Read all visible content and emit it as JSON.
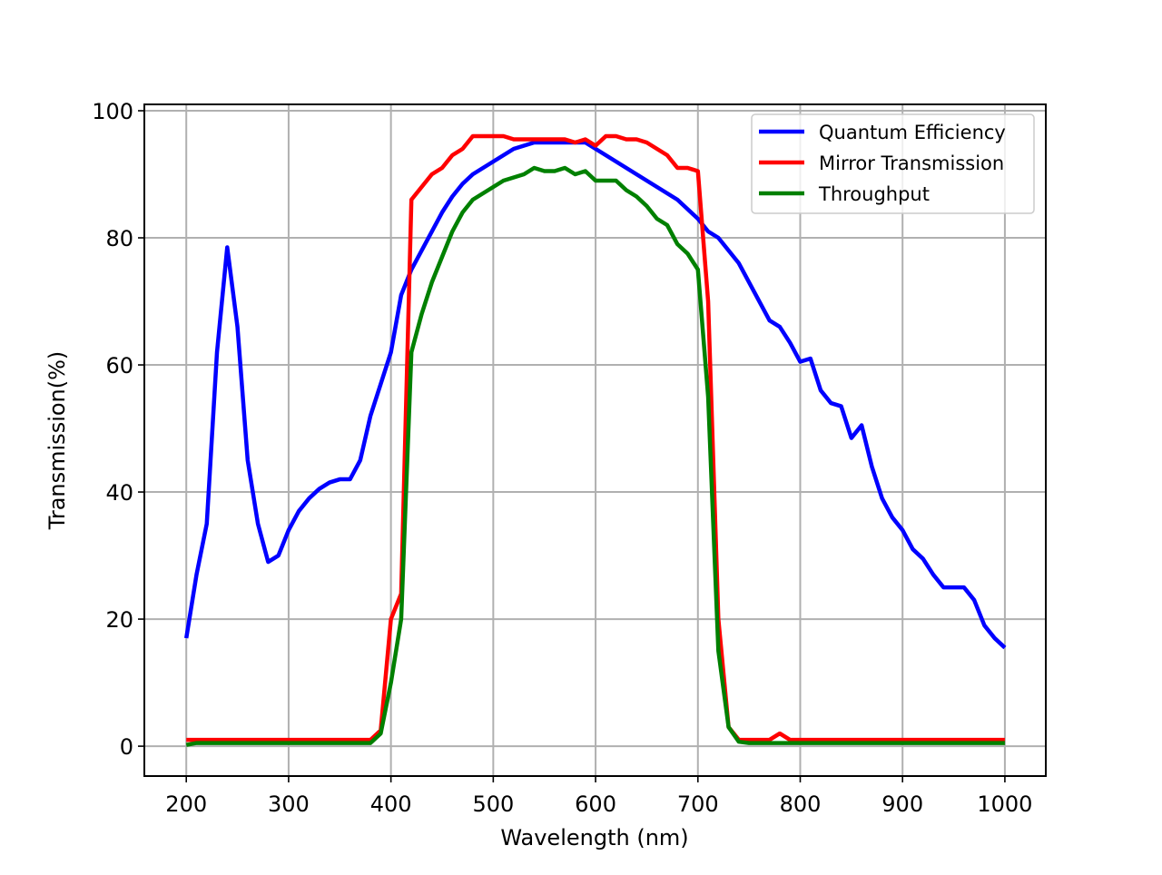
{
  "chart_data": {
    "type": "line",
    "xlabel": "Wavelength (nm)",
    "ylabel": "Transmission(%)",
    "x": [
      200,
      210,
      220,
      230,
      240,
      250,
      260,
      270,
      280,
      290,
      300,
      310,
      320,
      330,
      340,
      350,
      360,
      370,
      380,
      390,
      400,
      410,
      420,
      430,
      440,
      450,
      460,
      470,
      480,
      490,
      500,
      510,
      520,
      530,
      540,
      550,
      560,
      570,
      580,
      590,
      600,
      610,
      620,
      630,
      640,
      650,
      660,
      670,
      680,
      690,
      700,
      710,
      720,
      730,
      740,
      750,
      760,
      770,
      780,
      790,
      800,
      810,
      820,
      830,
      840,
      850,
      860,
      870,
      880,
      890,
      900,
      910,
      920,
      930,
      940,
      950,
      960,
      970,
      980,
      990,
      1000
    ],
    "series": [
      {
        "name": "Quantum Efficiency",
        "color": "#0000ff",
        "values": [
          17,
          27,
          35,
          62,
          78.5,
          66,
          45,
          35,
          29,
          30,
          34,
          37,
          39,
          40.5,
          41.5,
          42,
          42,
          45,
          52,
          57,
          62,
          71,
          75,
          78,
          81,
          84,
          86.5,
          88.5,
          90,
          91,
          92,
          93,
          94,
          94.5,
          95,
          95,
          95,
          95,
          95,
          95,
          94,
          93,
          92,
          91,
          90,
          89,
          88,
          87,
          86,
          84.5,
          83,
          81,
          80,
          78,
          76,
          73,
          70,
          67,
          66,
          63.5,
          60.5,
          61,
          56,
          54,
          53.5,
          48.5,
          50.5,
          44,
          39,
          36,
          34,
          31,
          29.5,
          27,
          25,
          25,
          25,
          23,
          19,
          17,
          15.5
        ]
      },
      {
        "name": "Mirror Transmission",
        "color": "#ff0000",
        "values": [
          1,
          1,
          1,
          1,
          1,
          1,
          1,
          1,
          1,
          1,
          1,
          1,
          1,
          1,
          1,
          1,
          1,
          1,
          1,
          2.5,
          20,
          24,
          86,
          88,
          90,
          91,
          93,
          94,
          96,
          96,
          96,
          96,
          95.5,
          95.5,
          95.5,
          95.5,
          95.5,
          95.5,
          95,
          95.5,
          94.5,
          96,
          96,
          95.5,
          95.5,
          95,
          94,
          93,
          91,
          91,
          90.5,
          70,
          20,
          3,
          1,
          1,
          1,
          1,
          2,
          1,
          1,
          1,
          1,
          1,
          1,
          1,
          1,
          1,
          1,
          1,
          1,
          1,
          1,
          1,
          1,
          1,
          1,
          1,
          1,
          1,
          1
        ]
      },
      {
        "name": "Throughput",
        "color": "#008000",
        "values": [
          0.2,
          0.5,
          0.5,
          0.5,
          0.5,
          0.5,
          0.5,
          0.5,
          0.5,
          0.5,
          0.5,
          0.5,
          0.5,
          0.5,
          0.5,
          0.5,
          0.5,
          0.5,
          0.5,
          2,
          10,
          20,
          62,
          68,
          73,
          77,
          81,
          84,
          86,
          87,
          88,
          89,
          89.5,
          90,
          91,
          90.5,
          90.5,
          91,
          90,
          90.5,
          89,
          89,
          89,
          87.5,
          86.5,
          85,
          83,
          82,
          79,
          77.5,
          75,
          55,
          15,
          3,
          0.7,
          0.5,
          0.5,
          0.5,
          0.5,
          0.5,
          0.5,
          0.5,
          0.5,
          0.5,
          0.5,
          0.5,
          0.5,
          0.5,
          0.5,
          0.5,
          0.5,
          0.5,
          0.5,
          0.5,
          0.5,
          0.5,
          0.5,
          0.5,
          0.5,
          0.5,
          0.5
        ]
      }
    ],
    "xlim": [
      159,
      1040
    ],
    "ylim": [
      -4.7,
      101
    ],
    "xticks": [
      200,
      300,
      400,
      500,
      600,
      700,
      800,
      900,
      1000
    ],
    "yticks": [
      0,
      20,
      40,
      60,
      80,
      100
    ],
    "grid": true,
    "legend": "upper right"
  }
}
